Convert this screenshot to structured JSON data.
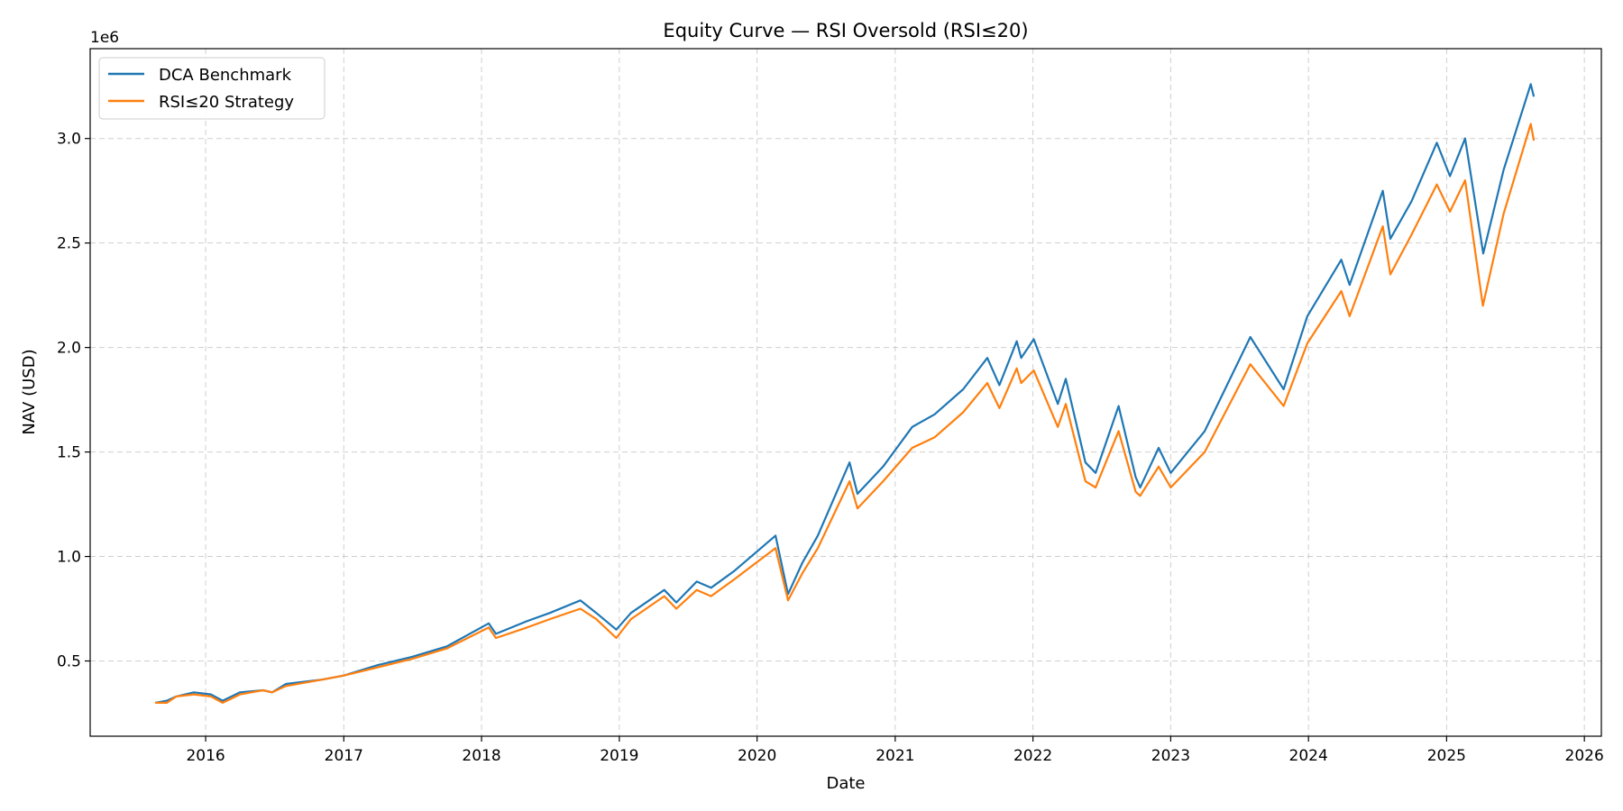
{
  "chart_data": {
    "type": "line",
    "title": "Equity Curve — RSI Oversold (RSI≤20)",
    "xlabel": "Date",
    "ylabel": "NAV (USD)",
    "y_offset_label": "1e6",
    "xlim": [
      "2015-03-01",
      "2026-02-15"
    ],
    "ylim": [
      0.14,
      3.43
    ],
    "x_ticks": [
      {
        "date": "2016-01-01",
        "label": "2016"
      },
      {
        "date": "2017-01-01",
        "label": "2017"
      },
      {
        "date": "2018-01-01",
        "label": "2018"
      },
      {
        "date": "2019-01-01",
        "label": "2019"
      },
      {
        "date": "2020-01-01",
        "label": "2020"
      },
      {
        "date": "2021-01-01",
        "label": "2021"
      },
      {
        "date": "2022-01-01",
        "label": "2022"
      },
      {
        "date": "2023-01-01",
        "label": "2023"
      },
      {
        "date": "2024-01-01",
        "label": "2024"
      },
      {
        "date": "2025-01-01",
        "label": "2025"
      },
      {
        "date": "2026-01-01",
        "label": "2026"
      }
    ],
    "y_ticks": [
      {
        "value": 0.5,
        "label": "0.5"
      },
      {
        "value": 1.0,
        "label": "1.0"
      },
      {
        "value": 1.5,
        "label": "1.5"
      },
      {
        "value": 2.0,
        "label": "2.0"
      },
      {
        "value": 2.5,
        "label": "2.5"
      },
      {
        "value": 3.0,
        "label": "3.0"
      }
    ],
    "grid": true,
    "legend_position": "top-left",
    "series": [
      {
        "name": "DCA Benchmark",
        "color": "#1f77b4",
        "points": [
          [
            "2015-08-20",
            0.3
          ],
          [
            "2015-09-20",
            0.31
          ],
          [
            "2015-10-15",
            0.33
          ],
          [
            "2015-12-01",
            0.35
          ],
          [
            "2016-01-15",
            0.34
          ],
          [
            "2016-02-15",
            0.31
          ],
          [
            "2016-04-01",
            0.35
          ],
          [
            "2016-06-01",
            0.36
          ],
          [
            "2016-06-25",
            0.35
          ],
          [
            "2016-08-01",
            0.39
          ],
          [
            "2016-11-01",
            0.41
          ],
          [
            "2017-01-01",
            0.43
          ],
          [
            "2017-04-01",
            0.48
          ],
          [
            "2017-07-01",
            0.52
          ],
          [
            "2017-10-01",
            0.57
          ],
          [
            "2018-01-20",
            0.68
          ],
          [
            "2018-02-08",
            0.63
          ],
          [
            "2018-05-01",
            0.69
          ],
          [
            "2018-07-01",
            0.73
          ],
          [
            "2018-09-20",
            0.79
          ],
          [
            "2018-11-01",
            0.73
          ],
          [
            "2018-12-24",
            0.65
          ],
          [
            "2019-02-01",
            0.73
          ],
          [
            "2019-04-30",
            0.84
          ],
          [
            "2019-06-01",
            0.78
          ],
          [
            "2019-07-25",
            0.88
          ],
          [
            "2019-09-01",
            0.85
          ],
          [
            "2019-11-01",
            0.93
          ],
          [
            "2020-02-19",
            1.1
          ],
          [
            "2020-03-23",
            0.82
          ],
          [
            "2020-04-30",
            0.97
          ],
          [
            "2020-06-10",
            1.1
          ],
          [
            "2020-09-02",
            1.45
          ],
          [
            "2020-09-23",
            1.3
          ],
          [
            "2020-11-30",
            1.43
          ],
          [
            "2021-02-15",
            1.62
          ],
          [
            "2021-04-15",
            1.68
          ],
          [
            "2021-06-30",
            1.8
          ],
          [
            "2021-09-02",
            1.95
          ],
          [
            "2021-10-04",
            1.82
          ],
          [
            "2021-11-19",
            2.03
          ],
          [
            "2021-12-01",
            1.95
          ],
          [
            "2022-01-03",
            2.04
          ],
          [
            "2022-03-08",
            1.73
          ],
          [
            "2022-03-29",
            1.85
          ],
          [
            "2022-05-20",
            1.45
          ],
          [
            "2022-06-16",
            1.4
          ],
          [
            "2022-08-16",
            1.72
          ],
          [
            "2022-09-30",
            1.38
          ],
          [
            "2022-10-12",
            1.33
          ],
          [
            "2022-11-30",
            1.52
          ],
          [
            "2023-01-01",
            1.4
          ],
          [
            "2023-04-01",
            1.6
          ],
          [
            "2023-07-31",
            2.05
          ],
          [
            "2023-10-27",
            1.8
          ],
          [
            "2023-12-29",
            2.15
          ],
          [
            "2024-03-28",
            2.42
          ],
          [
            "2024-04-19",
            2.3
          ],
          [
            "2024-07-16",
            2.75
          ],
          [
            "2024-08-05",
            2.52
          ],
          [
            "2024-09-30",
            2.7
          ],
          [
            "2024-12-06",
            2.98
          ],
          [
            "2025-01-10",
            2.82
          ],
          [
            "2025-02-19",
            3.0
          ],
          [
            "2025-04-08",
            2.45
          ],
          [
            "2025-06-01",
            2.85
          ],
          [
            "2025-08-12",
            3.26
          ],
          [
            "2025-08-20",
            3.2
          ]
        ]
      },
      {
        "name": "RSI≤20 Strategy",
        "color": "#ff7f0e",
        "points": [
          [
            "2015-08-20",
            0.3
          ],
          [
            "2015-09-20",
            0.3
          ],
          [
            "2015-10-15",
            0.33
          ],
          [
            "2015-12-01",
            0.34
          ],
          [
            "2016-01-15",
            0.33
          ],
          [
            "2016-02-15",
            0.3
          ],
          [
            "2016-04-01",
            0.34
          ],
          [
            "2016-06-01",
            0.36
          ],
          [
            "2016-06-25",
            0.35
          ],
          [
            "2016-08-01",
            0.38
          ],
          [
            "2016-11-01",
            0.41
          ],
          [
            "2017-01-01",
            0.43
          ],
          [
            "2017-04-01",
            0.47
          ],
          [
            "2017-07-01",
            0.51
          ],
          [
            "2017-10-01",
            0.56
          ],
          [
            "2018-01-20",
            0.66
          ],
          [
            "2018-02-08",
            0.61
          ],
          [
            "2018-05-01",
            0.66
          ],
          [
            "2018-07-01",
            0.7
          ],
          [
            "2018-09-20",
            0.75
          ],
          [
            "2018-11-01",
            0.7
          ],
          [
            "2018-12-24",
            0.61
          ],
          [
            "2019-02-01",
            0.7
          ],
          [
            "2019-04-30",
            0.81
          ],
          [
            "2019-06-01",
            0.75
          ],
          [
            "2019-07-25",
            0.84
          ],
          [
            "2019-09-01",
            0.81
          ],
          [
            "2019-11-01",
            0.89
          ],
          [
            "2020-02-19",
            1.04
          ],
          [
            "2020-03-23",
            0.79
          ],
          [
            "2020-04-30",
            0.92
          ],
          [
            "2020-06-10",
            1.04
          ],
          [
            "2020-09-02",
            1.36
          ],
          [
            "2020-09-23",
            1.23
          ],
          [
            "2020-11-30",
            1.36
          ],
          [
            "2021-02-15",
            1.52
          ],
          [
            "2021-04-15",
            1.57
          ],
          [
            "2021-06-30",
            1.69
          ],
          [
            "2021-09-02",
            1.83
          ],
          [
            "2021-10-04",
            1.71
          ],
          [
            "2021-11-19",
            1.9
          ],
          [
            "2021-12-01",
            1.83
          ],
          [
            "2022-01-03",
            1.89
          ],
          [
            "2022-03-08",
            1.62
          ],
          [
            "2022-03-29",
            1.73
          ],
          [
            "2022-05-20",
            1.36
          ],
          [
            "2022-06-16",
            1.33
          ],
          [
            "2022-08-16",
            1.6
          ],
          [
            "2022-09-30",
            1.31
          ],
          [
            "2022-10-12",
            1.29
          ],
          [
            "2022-11-30",
            1.43
          ],
          [
            "2023-01-01",
            1.33
          ],
          [
            "2023-04-01",
            1.5
          ],
          [
            "2023-07-31",
            1.92
          ],
          [
            "2023-10-27",
            1.72
          ],
          [
            "2023-12-29",
            2.02
          ],
          [
            "2024-03-28",
            2.27
          ],
          [
            "2024-04-19",
            2.15
          ],
          [
            "2024-07-16",
            2.58
          ],
          [
            "2024-08-05",
            2.35
          ],
          [
            "2024-09-30",
            2.54
          ],
          [
            "2024-12-06",
            2.78
          ],
          [
            "2025-01-10",
            2.65
          ],
          [
            "2025-02-19",
            2.8
          ],
          [
            "2025-04-07",
            2.2
          ],
          [
            "2025-06-01",
            2.64
          ],
          [
            "2025-08-12",
            3.07
          ],
          [
            "2025-08-20",
            2.99
          ]
        ]
      }
    ]
  }
}
